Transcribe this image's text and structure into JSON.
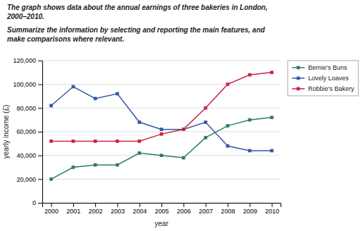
{
  "chart_data": {
    "type": "line",
    "title": [
      "The graph shows data about the annual earnings of three bakeries in London,",
      "2000–2010."
    ],
    "subtitle": [
      "Summarize the information by selecting and reporting the main features, and",
      "make comparisons where relevant."
    ],
    "xlabel": "year",
    "ylabel": "yearly income (£)",
    "x": [
      2000,
      2001,
      2002,
      2003,
      2004,
      2005,
      2006,
      2007,
      2008,
      2009,
      2010
    ],
    "series": [
      {
        "name": "Bernie's Buns",
        "color": "#2e7d5e",
        "values": [
          20000,
          30000,
          32000,
          32000,
          42000,
          40000,
          38000,
          55000,
          65000,
          70000,
          72000
        ]
      },
      {
        "name": "Lovely Loaves",
        "color": "#3355aa",
        "values": [
          82000,
          98000,
          88000,
          92000,
          68000,
          62000,
          62000,
          68000,
          48000,
          44000,
          44000
        ]
      },
      {
        "name": "Robbie's Bakery",
        "color": "#cc2244",
        "values": [
          52000,
          52000,
          52000,
          52000,
          52000,
          58000,
          62000,
          80000,
          100000,
          108000,
          110000
        ]
      }
    ],
    "xlim": [
      1999.6,
      2010.4
    ],
    "xticks": [
      2000,
      2001,
      2002,
      2003,
      2004,
      2005,
      2006,
      2007,
      2008,
      2009,
      2010
    ],
    "ylim": [
      0,
      120000
    ],
    "yticks": [
      0,
      {
        "value": 20000,
        "label": "20,000"
      },
      {
        "value": 40000,
        "label": "40,000"
      },
      {
        "value": 60000,
        "label": "60,000"
      },
      {
        "value": 80000,
        "label": "80,000"
      },
      {
        "value": 100000,
        "label": "100,000"
      },
      {
        "value": 120000,
        "label": "120,000"
      }
    ],
    "grid": true,
    "legend": "right",
    "marker": "square"
  }
}
